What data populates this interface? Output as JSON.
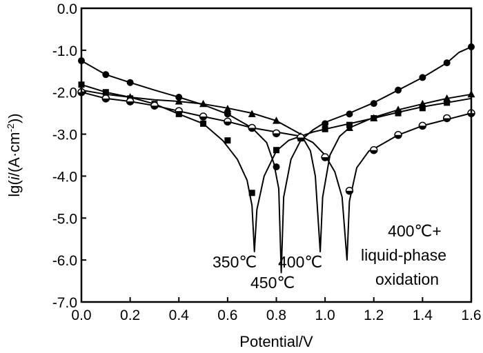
{
  "chart_data": {
    "type": "line",
    "title": "",
    "xlabel": "Potential/V",
    "ylabel_parts": [
      "lg(",
      "i",
      "/(A·cm",
      "-2",
      "))"
    ],
    "xlim": [
      0.0,
      1.6
    ],
    "ylim": [
      -7.0,
      0.0
    ],
    "x_ticks": [
      0.0,
      0.2,
      0.4,
      0.6,
      0.8,
      1.0,
      1.2,
      1.4,
      1.6
    ],
    "x_tick_labels": [
      "0.0",
      "0.2",
      "0.4",
      "0.6",
      "0.8",
      "1.0",
      "1.2",
      "1.4",
      "1.6"
    ],
    "y_ticks": [
      0.0,
      -1.0,
      -2.0,
      -3.0,
      -4.0,
      -5.0,
      -6.0,
      -7.0
    ],
    "y_tick_labels": [
      "0.0",
      "-1.0",
      "-2.0",
      "-3.0",
      "-4.0",
      "-5.0",
      "-6.0",
      "-7.0"
    ],
    "grid": false,
    "series": [
      {
        "name": "350℃",
        "marker": "square",
        "color": "#000000",
        "points": [
          [
            0.0,
            -1.82
          ],
          [
            0.1,
            -2.0
          ],
          [
            0.2,
            -2.12
          ],
          [
            0.3,
            -2.28
          ],
          [
            0.4,
            -2.52
          ],
          [
            0.5,
            -2.75
          ],
          [
            0.58,
            -3.15
          ],
          [
            0.64,
            -3.6
          ],
          [
            0.68,
            -4.1
          ],
          [
            0.7,
            -4.7
          ],
          [
            0.71,
            -5.8
          ],
          [
            0.72,
            -4.8
          ],
          [
            0.75,
            -4.0
          ],
          [
            0.8,
            -3.4
          ],
          [
            0.85,
            -3.15
          ],
          [
            0.9,
            -3.05
          ],
          [
            0.95,
            -2.95
          ],
          [
            1.0,
            -2.88
          ],
          [
            1.1,
            -2.75
          ],
          [
            1.2,
            -2.62
          ],
          [
            1.3,
            -2.48
          ],
          [
            1.4,
            -2.35
          ],
          [
            1.5,
            -2.25
          ],
          [
            1.6,
            -2.15
          ]
        ],
        "marked": [
          [
            0.0,
            -1.82
          ],
          [
            0.1,
            -2.0
          ],
          [
            0.2,
            -2.15
          ],
          [
            0.3,
            -2.28
          ],
          [
            0.4,
            -2.52
          ],
          [
            0.5,
            -2.75
          ],
          [
            0.6,
            -3.15
          ],
          [
            0.7,
            -4.4
          ],
          [
            0.8,
            -3.38
          ],
          [
            0.9,
            -3.1
          ],
          [
            1.0,
            -2.88
          ],
          [
            1.1,
            -2.78
          ],
          [
            1.2,
            -2.62
          ],
          [
            1.3,
            -2.5
          ],
          [
            1.4,
            -2.38
          ],
          [
            1.5,
            -2.25
          ]
        ]
      },
      {
        "name": "450℃",
        "marker": "circle-filled",
        "color": "#000000",
        "points": [
          [
            0.0,
            -1.25
          ],
          [
            0.1,
            -1.58
          ],
          [
            0.2,
            -1.77
          ],
          [
            0.3,
            -1.95
          ],
          [
            0.4,
            -2.12
          ],
          [
            0.5,
            -2.3
          ],
          [
            0.6,
            -2.52
          ],
          [
            0.7,
            -2.85
          ],
          [
            0.76,
            -3.2
          ],
          [
            0.79,
            -3.7
          ],
          [
            0.81,
            -4.3
          ],
          [
            0.82,
            -6.3
          ],
          [
            0.83,
            -4.5
          ],
          [
            0.86,
            -3.6
          ],
          [
            0.9,
            -3.15
          ],
          [
            0.95,
            -2.9
          ],
          [
            1.0,
            -2.72
          ],
          [
            1.1,
            -2.5
          ],
          [
            1.2,
            -2.25
          ],
          [
            1.3,
            -1.95
          ],
          [
            1.4,
            -1.65
          ],
          [
            1.5,
            -1.3
          ],
          [
            1.55,
            -1.05
          ],
          [
            1.6,
            -0.92
          ]
        ],
        "marked": [
          [
            0.0,
            -1.25
          ],
          [
            0.1,
            -1.58
          ],
          [
            0.2,
            -1.77
          ],
          [
            0.4,
            -2.12
          ],
          [
            0.6,
            -2.52
          ],
          [
            0.7,
            -2.85
          ],
          [
            0.8,
            -3.78
          ],
          [
            1.0,
            -2.75
          ],
          [
            1.1,
            -2.52
          ],
          [
            1.2,
            -2.27
          ],
          [
            1.3,
            -1.95
          ],
          [
            1.4,
            -1.65
          ],
          [
            1.5,
            -1.3
          ],
          [
            1.6,
            -0.92
          ]
        ]
      },
      {
        "name": "400℃",
        "marker": "triangle",
        "color": "#000000",
        "points": [
          [
            0.0,
            -1.95
          ],
          [
            0.1,
            -2.05
          ],
          [
            0.2,
            -2.12
          ],
          [
            0.3,
            -2.18
          ],
          [
            0.4,
            -2.22
          ],
          [
            0.5,
            -2.28
          ],
          [
            0.6,
            -2.38
          ],
          [
            0.7,
            -2.5
          ],
          [
            0.8,
            -2.68
          ],
          [
            0.9,
            -3.0
          ],
          [
            0.94,
            -3.4
          ],
          [
            0.96,
            -4.0
          ],
          [
            0.98,
            -5.8
          ],
          [
            0.99,
            -4.5
          ],
          [
            1.02,
            -3.5
          ],
          [
            1.06,
            -3.05
          ],
          [
            1.1,
            -2.85
          ],
          [
            1.2,
            -2.6
          ],
          [
            1.3,
            -2.42
          ],
          [
            1.4,
            -2.28
          ],
          [
            1.5,
            -2.15
          ],
          [
            1.6,
            -2.05
          ]
        ],
        "marked": [
          [
            0.0,
            -1.95
          ],
          [
            0.1,
            -2.05
          ],
          [
            0.2,
            -2.12
          ],
          [
            0.4,
            -2.22
          ],
          [
            0.5,
            -2.28
          ],
          [
            0.6,
            -2.4
          ],
          [
            0.7,
            -2.52
          ],
          [
            0.8,
            -2.68
          ],
          [
            0.9,
            -3.05
          ],
          [
            1.1,
            -2.85
          ],
          [
            1.2,
            -2.62
          ],
          [
            1.3,
            -2.42
          ],
          [
            1.4,
            -2.28
          ],
          [
            1.5,
            -2.15
          ],
          [
            1.6,
            -2.05
          ]
        ]
      },
      {
        "name": "400℃+ liquid-phase oxidation",
        "marker": "circle-half",
        "color": "#000000",
        "points": [
          [
            0.0,
            -2.0
          ],
          [
            0.1,
            -2.15
          ],
          [
            0.2,
            -2.22
          ],
          [
            0.3,
            -2.32
          ],
          [
            0.4,
            -2.45
          ],
          [
            0.5,
            -2.58
          ],
          [
            0.6,
            -2.7
          ],
          [
            0.7,
            -2.85
          ],
          [
            0.8,
            -2.95
          ],
          [
            0.9,
            -3.05
          ],
          [
            0.95,
            -3.2
          ],
          [
            1.0,
            -3.5
          ],
          [
            1.04,
            -3.9
          ],
          [
            1.07,
            -4.5
          ],
          [
            1.09,
            -6.0
          ],
          [
            1.1,
            -4.6
          ],
          [
            1.13,
            -3.8
          ],
          [
            1.18,
            -3.4
          ],
          [
            1.2,
            -3.35
          ],
          [
            1.3,
            -3.02
          ],
          [
            1.4,
            -2.8
          ],
          [
            1.5,
            -2.65
          ],
          [
            1.6,
            -2.5
          ]
        ],
        "marked": [
          [
            0.0,
            -2.0
          ],
          [
            0.1,
            -2.15
          ],
          [
            0.2,
            -2.22
          ],
          [
            0.3,
            -2.32
          ],
          [
            0.4,
            -2.45
          ],
          [
            0.5,
            -2.58
          ],
          [
            0.6,
            -2.7
          ],
          [
            0.7,
            -2.85
          ],
          [
            0.8,
            -2.98
          ],
          [
            0.9,
            -3.08
          ],
          [
            1.0,
            -3.55
          ],
          [
            1.1,
            -4.35
          ],
          [
            1.2,
            -3.38
          ],
          [
            1.3,
            -3.02
          ],
          [
            1.4,
            -2.8
          ],
          [
            1.5,
            -2.62
          ],
          [
            1.6,
            -2.5
          ]
        ]
      }
    ],
    "annotations": [
      {
        "id": "a350",
        "lines": [
          "350℃"
        ],
        "anchor_series": "350℃"
      },
      {
        "id": "a450",
        "lines": [
          "450℃"
        ],
        "anchor_series": "450℃"
      },
      {
        "id": "a400",
        "lines": [
          "400℃"
        ],
        "anchor_series": "400℃"
      },
      {
        "id": "a400lp",
        "lines": [
          "400℃+",
          "liquid-phase",
          "oxidation"
        ],
        "anchor_series": "400℃+ liquid-phase oxidation"
      }
    ]
  }
}
